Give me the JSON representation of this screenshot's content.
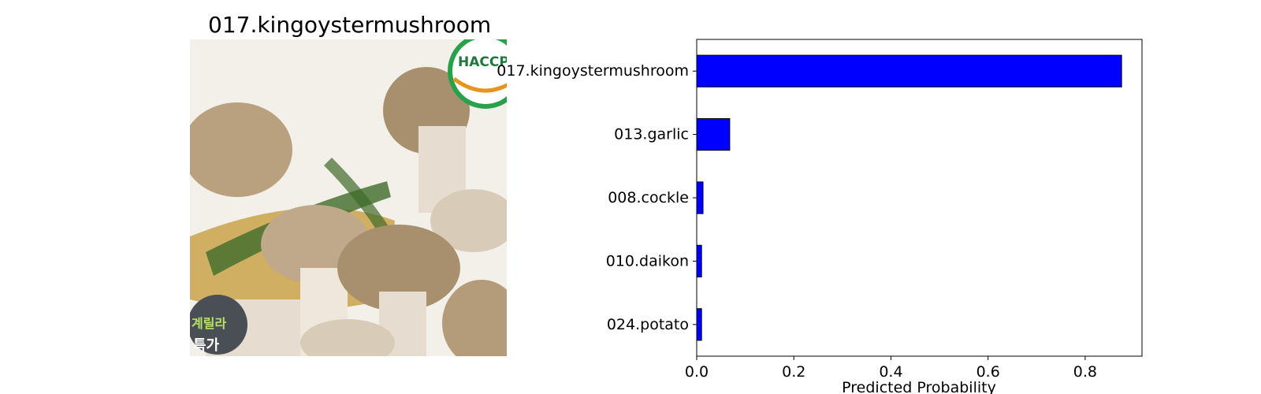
{
  "image_panel": {
    "title": "017.kingoystermushroom",
    "package_text": [
      "HACCP",
      "계릴라",
      "특가"
    ],
    "colors": {
      "background": "#f3efe9",
      "mushroom_cap": "#a8906f",
      "mushroom_stem": "#e6ddd0",
      "basket": "#c9a24a",
      "greens": "#3f6b2a",
      "haccp_green": "#27a24a",
      "haccp_orange": "#e8931c",
      "badge_dark": "#4a4e55",
      "badge_text": "#b7e06a"
    }
  },
  "chart_data": {
    "type": "bar",
    "orientation": "horizontal",
    "categories": [
      "017.kingoystermushroom",
      "013.garlic",
      "008.cockle",
      "010.daikon",
      "024.potato"
    ],
    "values": [
      0.875,
      0.068,
      0.013,
      0.01,
      0.01
    ],
    "xlabel": "Predicted Probability",
    "ylabel": "",
    "xlim": [
      0,
      0.917
    ],
    "xticks": [
      0,
      0.2,
      0.4,
      0.6,
      0.8
    ],
    "xtick_labels": [
      "0.0",
      "0.2",
      "0.4",
      "0.6",
      "0.8"
    ],
    "bar_color": "#0000ff",
    "edge_color": "#000000",
    "grid": false
  }
}
